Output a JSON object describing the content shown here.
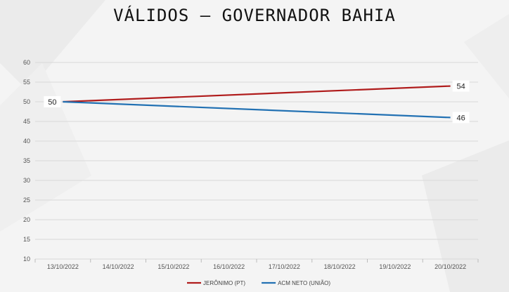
{
  "chart_data": {
    "type": "line",
    "title": "VÁLIDOS – GOVERNADOR BAHIA",
    "categories": [
      "13/10/2022",
      "14/10/2022",
      "15/10/2022",
      "16/10/2022",
      "17/10/2022",
      "18/10/2022",
      "19/10/2022",
      "20/10/2022"
    ],
    "ylim": [
      10,
      60
    ],
    "yticks": [
      10,
      15,
      20,
      25,
      30,
      35,
      40,
      45,
      50,
      55,
      60
    ],
    "grid": "horizontal",
    "legend_position": "bottom",
    "series": [
      {
        "name": "JERÔNIMO (PT)",
        "color": "#b01c1c",
        "points": [
          {
            "x": "13/10/2022",
            "y": 50
          },
          {
            "x": "20/10/2022",
            "y": 54
          }
        ],
        "labels": [
          {
            "x": "20/10/2022",
            "text": "54"
          }
        ]
      },
      {
        "name": "ACM NETO (UNIÃO)",
        "color": "#2271b3",
        "points": [
          {
            "x": "13/10/2022",
            "y": 50
          },
          {
            "x": "20/10/2022",
            "y": 46
          }
        ],
        "labels": [
          {
            "x": "20/10/2022",
            "text": "46"
          }
        ]
      }
    ],
    "shared_labels": [
      {
        "x": "13/10/2022",
        "y": 50,
        "text": "50"
      }
    ]
  }
}
